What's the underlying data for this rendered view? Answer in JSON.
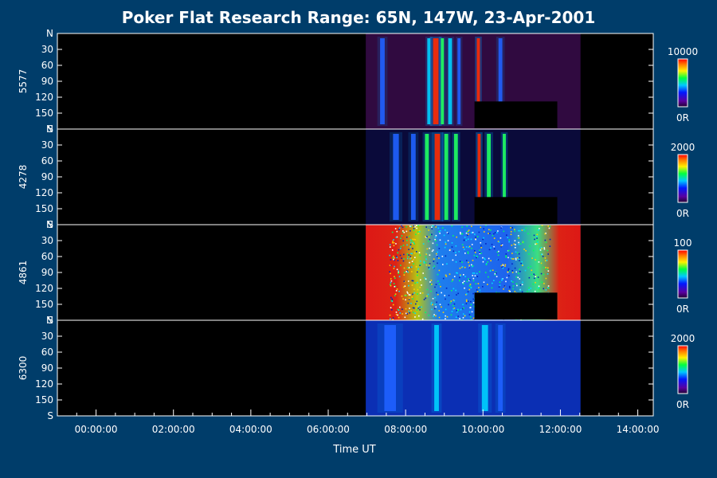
{
  "chart_data": {
    "type": "heatmap",
    "title": "Poker Flat Research Range: 65N, 147W, 23-Apr-2001",
    "xlabel": "Time UT",
    "xlim_hours": [
      -1.0,
      14.4
    ],
    "x_ticks": [
      "00:00:00",
      "02:00:00",
      "04:00:00",
      "06:00:00",
      "08:00:00",
      "10:00:00",
      "12:00:00",
      "14:00:00"
    ],
    "x_tick_hours": [
      0,
      2,
      4,
      6,
      8,
      10,
      12,
      14
    ],
    "y_ticks": [
      "N",
      "30",
      "60",
      "90",
      "120",
      "150",
      "S"
    ],
    "y_tick_angles": [
      0,
      30,
      60,
      90,
      120,
      150,
      180
    ],
    "data_coverage_hours": [
      6.97,
      12.52
    ],
    "gap": {
      "start_hour": 9.78,
      "end_hour": 11.92,
      "angle_from": 128,
      "angle_to": 180
    },
    "colorscale": "rainbow (purple to red)",
    "panels": [
      {
        "ylabel": "5577",
        "cbar_max": "10000",
        "cbar_min": "0R",
        "background": "#300a40",
        "bands": [
          {
            "t": 8.78,
            "width": 0.14,
            "level": 0.95
          },
          {
            "t": 8.6,
            "width": 0.08,
            "level": 0.55
          },
          {
            "t": 8.95,
            "width": 0.08,
            "level": 0.6
          },
          {
            "t": 9.15,
            "width": 0.1,
            "level": 0.5
          },
          {
            "t": 9.38,
            "width": 0.08,
            "level": 0.45
          },
          {
            "t": 9.88,
            "width": 0.08,
            "level": 0.9
          },
          {
            "t": 10.45,
            "width": 0.1,
            "level": 0.45
          },
          {
            "t": 7.4,
            "width": 0.12,
            "level": 0.4
          }
        ]
      },
      {
        "ylabel": "4278",
        "cbar_max": "2000",
        "cbar_min": "0R",
        "background": "#0a0a3a",
        "bands": [
          {
            "t": 8.82,
            "width": 0.14,
            "level": 1.0
          },
          {
            "t": 8.55,
            "width": 0.1,
            "level": 0.6
          },
          {
            "t": 9.05,
            "width": 0.1,
            "level": 0.7
          },
          {
            "t": 9.3,
            "width": 0.1,
            "level": 0.6
          },
          {
            "t": 9.9,
            "width": 0.08,
            "level": 0.95
          },
          {
            "t": 10.15,
            "width": 0.1,
            "level": 0.65
          },
          {
            "t": 10.55,
            "width": 0.08,
            "level": 0.7
          },
          {
            "t": 7.75,
            "width": 0.15,
            "level": 0.45
          },
          {
            "t": 8.2,
            "width": 0.12,
            "level": 0.4
          }
        ]
      },
      {
        "ylabel": "4861",
        "cbar_max": "100",
        "cbar_min": "0R",
        "background": "#1a2f8a",
        "bands": []
      },
      {
        "ylabel": "6300",
        "cbar_max": "2000",
        "cbar_min": "0R",
        "background": "#0b2fb4",
        "bands": [
          {
            "t": 8.8,
            "width": 0.12,
            "level": 0.55
          },
          {
            "t": 10.05,
            "width": 0.16,
            "level": 0.5
          },
          {
            "t": 10.45,
            "width": 0.12,
            "level": 0.45
          },
          {
            "t": 7.6,
            "width": 0.3,
            "level": 0.4
          }
        ]
      }
    ]
  }
}
